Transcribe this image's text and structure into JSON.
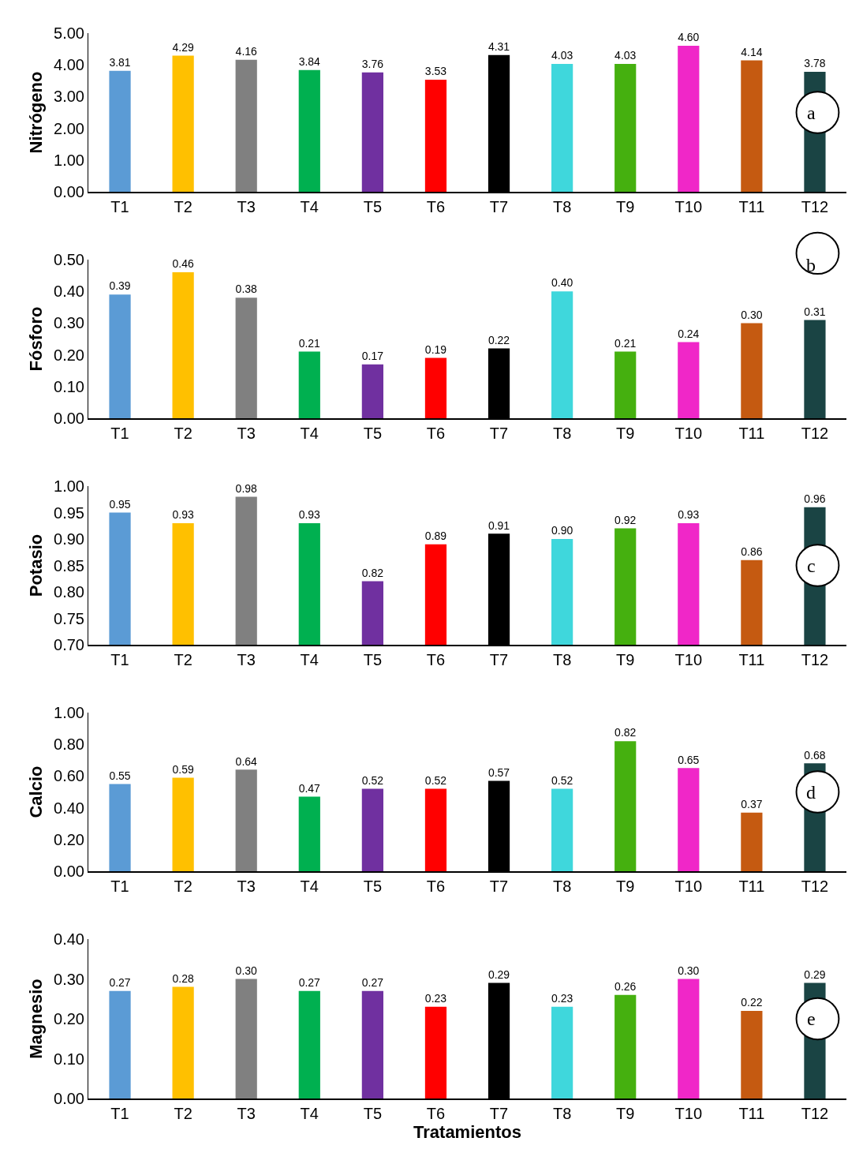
{
  "chart_data": [
    {
      "type": "bar",
      "ylabel": "Nitrógeno",
      "categories": [
        "T1",
        "T2",
        "T3",
        "T4",
        "T5",
        "T6",
        "T7",
        "T8",
        "T9",
        "T10",
        "T11",
        "T12"
      ],
      "values": [
        3.81,
        4.29,
        4.16,
        3.84,
        3.76,
        3.53,
        4.31,
        4.03,
        4.03,
        4.6,
        4.14,
        3.78
      ],
      "value_labels": [
        "3.81",
        "4.29",
        "4.16",
        "3.84",
        "3.76",
        "3.53",
        "4.31",
        "4.03",
        "4.03",
        "4.60",
        "4.14",
        "3.78"
      ],
      "colors": [
        "#5b9bd5",
        "#ffc000",
        "#808080",
        "#00b050",
        "#7030a0",
        "#ff0000",
        "#000000",
        "#3fd7dc",
        "#45b00f",
        "#f027c8",
        "#c55a11",
        "#1a4444"
      ],
      "ylim": [
        0,
        5
      ],
      "yticks": [
        {
          "value": 0,
          "label": "0.00"
        },
        {
          "value": 1,
          "label": "1.00"
        },
        {
          "value": 2,
          "label": "2.00"
        },
        {
          "value": 3,
          "label": "3.00"
        },
        {
          "value": 4,
          "label": "4.00"
        },
        {
          "value": 5,
          "label": "5.00"
        }
      ],
      "grid": false,
      "legend": false,
      "annotations": [
        "a"
      ]
    },
    {
      "type": "bar",
      "ylabel": "Fósforo",
      "categories": [
        "T1",
        "T2",
        "T3",
        "T4",
        "T5",
        "T6",
        "T7",
        "T8",
        "T9",
        "T10",
        "T11",
        "T12"
      ],
      "values": [
        0.39,
        0.46,
        0.38,
        0.21,
        0.17,
        0.19,
        0.22,
        0.4,
        0.21,
        0.24,
        0.3,
        0.31
      ],
      "value_labels": [
        "0.39",
        "0.46",
        "0.38",
        "0.21",
        "0.17",
        "0.19",
        "0.22",
        "0.40",
        "0.21",
        "0.24",
        "0.30",
        "0.31"
      ],
      "colors": [
        "#5b9bd5",
        "#ffc000",
        "#808080",
        "#00b050",
        "#7030a0",
        "#ff0000",
        "#000000",
        "#3fd7dc",
        "#45b00f",
        "#f027c8",
        "#c55a11",
        "#1a4444"
      ],
      "ylim": [
        0,
        0.5
      ],
      "yticks": [
        {
          "value": 0,
          "label": "0.00"
        },
        {
          "value": 0.1,
          "label": "0.10"
        },
        {
          "value": 0.2,
          "label": "0.20"
        },
        {
          "value": 0.3,
          "label": "0.30"
        },
        {
          "value": 0.4,
          "label": "0.40"
        },
        {
          "value": 0.5,
          "label": "0.50"
        }
      ],
      "grid": false,
      "legend": false,
      "annotations": [
        "b"
      ]
    },
    {
      "type": "bar",
      "ylabel": "Potasio",
      "categories": [
        "T1",
        "T2",
        "T3",
        "T4",
        "T5",
        "T6",
        "T7",
        "T8",
        "T9",
        "T10",
        "T11",
        "T12"
      ],
      "values": [
        0.95,
        0.93,
        0.98,
        0.93,
        0.82,
        0.89,
        0.91,
        0.9,
        0.92,
        0.93,
        0.86,
        0.96
      ],
      "value_labels": [
        "0.95",
        "0.93",
        "0.98",
        "0.93",
        "0.82",
        "0.89",
        "0.91",
        "0.90",
        "0.92",
        "0.93",
        "0.86",
        "0.96"
      ],
      "colors": [
        "#5b9bd5",
        "#ffc000",
        "#808080",
        "#00b050",
        "#7030a0",
        "#ff0000",
        "#000000",
        "#3fd7dc",
        "#45b00f",
        "#f027c8",
        "#c55a11",
        "#1a4444"
      ],
      "ylim": [
        0.7,
        1.0
      ],
      "yticks": [
        {
          "value": 0.7,
          "label": "0.70"
        },
        {
          "value": 0.75,
          "label": "0.75"
        },
        {
          "value": 0.8,
          "label": "0.80"
        },
        {
          "value": 0.85,
          "label": "0.85"
        },
        {
          "value": 0.9,
          "label": "0.90"
        },
        {
          "value": 0.95,
          "label": "0.95"
        },
        {
          "value": 1.0,
          "label": "1.00"
        }
      ],
      "grid": false,
      "legend": false,
      "annotations": [
        "c"
      ]
    },
    {
      "type": "bar",
      "ylabel": "Calcio",
      "categories": [
        "T1",
        "T2",
        "T3",
        "T4",
        "T5",
        "T6",
        "T7",
        "T8",
        "T9",
        "T10",
        "T11",
        "T12"
      ],
      "values": [
        0.55,
        0.59,
        0.64,
        0.47,
        0.52,
        0.52,
        0.57,
        0.52,
        0.82,
        0.65,
        0.37,
        0.68
      ],
      "value_labels": [
        "0.55",
        "0.59",
        "0.64",
        "0.47",
        "0.52",
        "0.52",
        "0.57",
        "0.52",
        "0.82",
        "0.65",
        "0.37",
        "0.68"
      ],
      "colors": [
        "#5b9bd5",
        "#ffc000",
        "#808080",
        "#00b050",
        "#7030a0",
        "#ff0000",
        "#000000",
        "#3fd7dc",
        "#45b00f",
        "#f027c8",
        "#c55a11",
        "#1a4444"
      ],
      "ylim": [
        0,
        1.0
      ],
      "yticks": [
        {
          "value": 0,
          "label": "0.00"
        },
        {
          "value": 0.2,
          "label": "0.20"
        },
        {
          "value": 0.4,
          "label": "0.40"
        },
        {
          "value": 0.6,
          "label": "0.60"
        },
        {
          "value": 0.8,
          "label": "0.80"
        },
        {
          "value": 1.0,
          "label": "1.00"
        }
      ],
      "grid": false,
      "legend": false,
      "annotations": [
        "d"
      ]
    },
    {
      "type": "bar",
      "ylabel": "Magnesio",
      "xlabel": "Tratamientos",
      "categories": [
        "T1",
        "T2",
        "T3",
        "T4",
        "T5",
        "T6",
        "T7",
        "T8",
        "T9",
        "T10",
        "T11",
        "T12"
      ],
      "values": [
        0.27,
        0.28,
        0.3,
        0.27,
        0.27,
        0.23,
        0.29,
        0.23,
        0.26,
        0.3,
        0.22,
        0.29
      ],
      "value_labels": [
        "0.27",
        "0.28",
        "0.30",
        "0.27",
        "0.27",
        "0.23",
        "0.29",
        "0.23",
        "0.26",
        "0.30",
        "0.22",
        "0.29"
      ],
      "colors": [
        "#5b9bd5",
        "#ffc000",
        "#808080",
        "#00b050",
        "#7030a0",
        "#ff0000",
        "#000000",
        "#3fd7dc",
        "#45b00f",
        "#f027c8",
        "#c55a11",
        "#1a4444"
      ],
      "ylim": [
        0,
        0.4
      ],
      "yticks": [
        {
          "value": 0,
          "label": "0.00"
        },
        {
          "value": 0.1,
          "label": "0.10"
        },
        {
          "value": 0.2,
          "label": "0.20"
        },
        {
          "value": 0.3,
          "label": "0.30"
        },
        {
          "value": 0.4,
          "label": "0.40"
        }
      ],
      "grid": false,
      "legend": false,
      "annotations": [
        "e"
      ]
    }
  ]
}
